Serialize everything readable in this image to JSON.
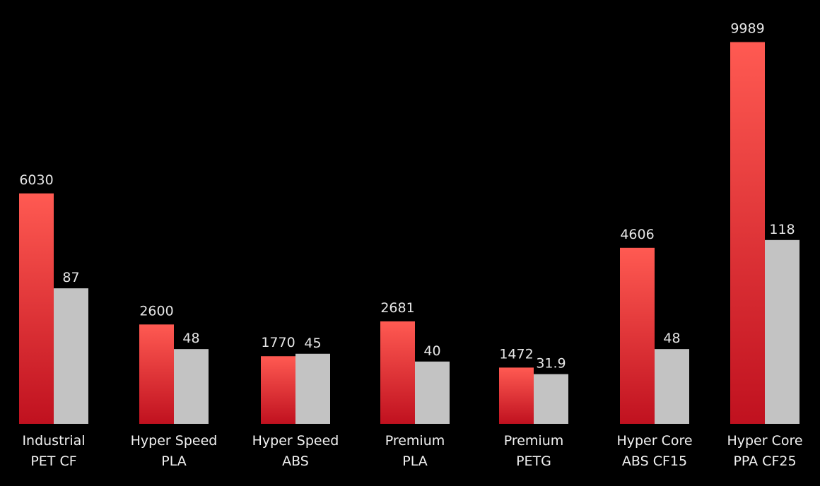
{
  "chart_data": {
    "type": "bar",
    "categories": [
      [
        "Industrial",
        "PET CF"
      ],
      [
        "Hyper Speed",
        "PLA"
      ],
      [
        "Hyper Speed",
        "ABS"
      ],
      [
        "Premium",
        "PLA"
      ],
      [
        "Premium",
        "PETG"
      ],
      [
        "Hyper Core",
        "ABS CF15"
      ],
      [
        "Hyper Core",
        "PPA CF25"
      ]
    ],
    "series": [
      {
        "values": [
          6030,
          2600,
          1770,
          2681,
          1472,
          4606,
          9989
        ],
        "color": "#ff5a52",
        "color_bottom": "#c0111f"
      },
      {
        "values": [
          87,
          48,
          45,
          40,
          31.9,
          48,
          118
        ],
        "color": "#c3c3c3"
      }
    ],
    "value_labels": [
      [
        "6030",
        "2600",
        "1770",
        "2681",
        "1472",
        "4606",
        "9989"
      ],
      [
        "87",
        "48",
        "45",
        "40",
        "31.9",
        "48",
        "118"
      ]
    ],
    "background": "#000000",
    "title": "",
    "xlabel": "",
    "ylabel": "",
    "grid": false,
    "legend": "none"
  }
}
